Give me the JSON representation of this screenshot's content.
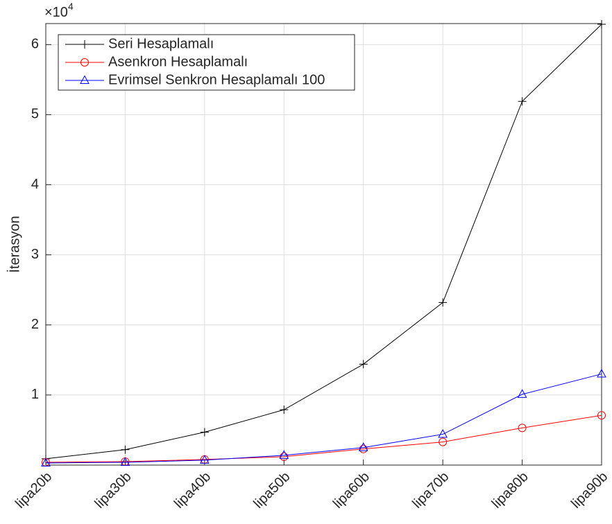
{
  "chart_data": {
    "type": "line",
    "y_label": "İterasyon",
    "y_multiplier": {
      "base": "×10",
      "power": "4"
    },
    "categories": [
      "lipa20b",
      "lipa30b",
      "lipa40b",
      "lipa50b",
      "lipa60b",
      "lipa70b",
      "lipa80b",
      "lipa90b"
    ],
    "series": [
      {
        "name": "Seri Hesaplamalı",
        "color": "#000000",
        "marker": "plus",
        "values": [
          900,
          2200,
          4700,
          7900,
          14400,
          23200,
          51900,
          62900
        ]
      },
      {
        "name": "Asenkron Hesaplamalı",
        "color": "#ff0000",
        "marker": "circle",
        "values": [
          400,
          500,
          800,
          1200,
          2300,
          3300,
          5300,
          7100
        ]
      },
      {
        "name": "Evrimsel Senkron Hesaplamalı 100",
        "color": "#0000ff",
        "marker": "triangle",
        "values": [
          300,
          400,
          700,
          1400,
          2500,
          4400,
          10100,
          13000
        ]
      }
    ],
    "ylim": [
      0,
      63000
    ],
    "yticks": [
      {
        "value": 10000,
        "label": "1"
      },
      {
        "value": 20000,
        "label": "2"
      },
      {
        "value": 30000,
        "label": "3"
      },
      {
        "value": 40000,
        "label": "4"
      },
      {
        "value": 50000,
        "label": "5"
      },
      {
        "value": 60000,
        "label": "6"
      }
    ],
    "grid": true,
    "legend": "top-left"
  }
}
